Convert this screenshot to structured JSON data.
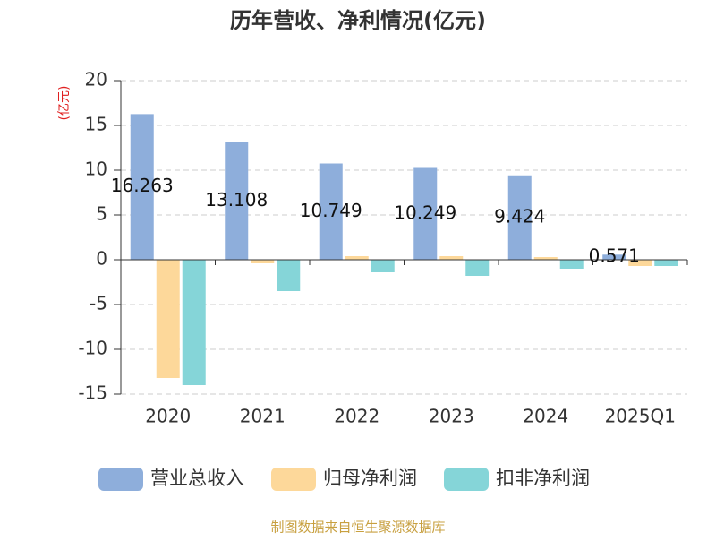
{
  "chart_data": {
    "type": "bar",
    "title": "历年营收、净利情况(亿元)",
    "y_label": "(亿元)",
    "categories": [
      "2020",
      "2021",
      "2022",
      "2023",
      "2024",
      "2025Q1"
    ],
    "series": [
      {
        "name": "营业总收入",
        "color": "#8eaedb",
        "values": [
          16.263,
          13.108,
          10.749,
          10.249,
          9.424,
          0.571
        ],
        "show_labels": true
      },
      {
        "name": "归母净利润",
        "color": "#fdd89a",
        "values": [
          -13.2,
          -0.4,
          0.4,
          0.4,
          0.3,
          -0.7
        ],
        "show_labels": false
      },
      {
        "name": "扣非净利润",
        "color": "#85d5d8",
        "values": [
          -14.0,
          -3.5,
          -1.4,
          -1.8,
          -1.0,
          -0.7
        ],
        "show_labels": false
      }
    ],
    "ylim": [
      -15,
      20
    ],
    "yticks": [
      -15,
      -10,
      -5,
      0,
      5,
      10,
      15,
      20
    ],
    "grid": true,
    "source": "制图数据来自恒生聚源数据库"
  }
}
